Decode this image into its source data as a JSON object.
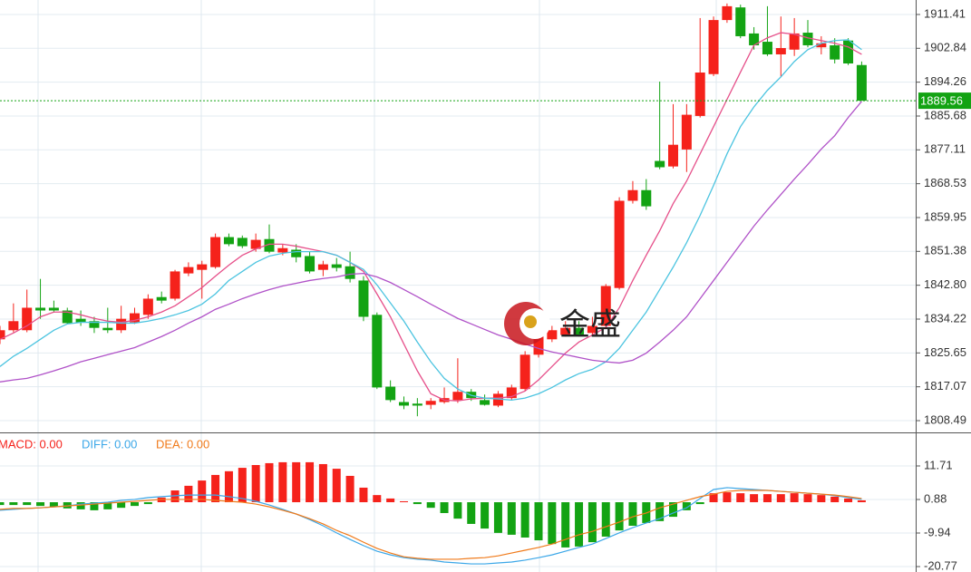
{
  "chart_data": [
    {
      "type": "candlestick",
      "open": [
        1829.1,
        1831.4,
        1831.4,
        1837.1,
        1837.1,
        1836.4,
        1834.3,
        1833.7,
        1832.0,
        1831.4,
        1833.4,
        1835.3,
        1839.8,
        1839.4,
        1845.8,
        1846.7,
        1847.4,
        1855.0,
        1854.8,
        1852.0,
        1854.5,
        1851.1,
        1851.8,
        1850.2,
        1846.7,
        1848.1,
        1847.6,
        1844.0,
        1835.3,
        1817.1,
        1813.2,
        1812.8,
        1812.5,
        1813.2,
        1813.7,
        1815.8,
        1813.7,
        1812.3,
        1814.2,
        1816.5,
        1825.2,
        1829.1,
        1830.2,
        1832.0,
        1830.7,
        1832.5,
        1842.1,
        1864.2,
        1866.9,
        1874.3,
        1872.9,
        1877.2,
        1885.7,
        1896.3,
        1910.0,
        1913.2,
        1906.6,
        1904.5,
        1901.3,
        1902.5,
        1906.8,
        1903.1,
        1903.6,
        1904.8,
        1898.6
      ],
      "high": [
        1832.5,
        1838.2,
        1841.7,
        1844.4,
        1838.9,
        1837.1,
        1836.4,
        1834.8,
        1837.1,
        1837.6,
        1837.1,
        1840.5,
        1841.2,
        1846.7,
        1848.6,
        1849.0,
        1855.9,
        1855.9,
        1855.4,
        1855.9,
        1858.2,
        1853.2,
        1853.2,
        1851.3,
        1849.0,
        1849.7,
        1851.3,
        1845.1,
        1835.9,
        1818.7,
        1814.6,
        1814.2,
        1814.2,
        1816.9,
        1824.3,
        1816.5,
        1815.1,
        1816.0,
        1817.6,
        1826.1,
        1830.7,
        1832.5,
        1833.7,
        1833.7,
        1834.8,
        1843.1,
        1865.1,
        1869.2,
        1869.7,
        1894.4,
        1888.7,
        1888.7,
        1910.5,
        1910.9,
        1914.2,
        1913.9,
        1908.2,
        1913.5,
        1910.9,
        1910.5,
        1910.0,
        1905.9,
        1905.4,
        1905.4,
        1899.5
      ],
      "low": [
        1827.9,
        1830.9,
        1830.9,
        1834.3,
        1835.9,
        1833.0,
        1832.5,
        1830.7,
        1830.7,
        1830.7,
        1833.0,
        1834.3,
        1838.2,
        1838.9,
        1845.1,
        1839.4,
        1847.0,
        1852.7,
        1852.2,
        1851.3,
        1850.9,
        1850.4,
        1848.6,
        1845.8,
        1845.1,
        1846.3,
        1843.5,
        1833.7,
        1816.5,
        1813.2,
        1811.4,
        1809.6,
        1811.4,
        1812.8,
        1813.0,
        1813.5,
        1812.3,
        1811.9,
        1813.7,
        1816.0,
        1824.5,
        1828.4,
        1829.8,
        1829.8,
        1830.2,
        1832.0,
        1841.7,
        1863.5,
        1861.9,
        1872.2,
        1872.4,
        1871.5,
        1885.3,
        1895.8,
        1909.3,
        1905.4,
        1902.5,
        1900.9,
        1895.6,
        1900.9,
        1903.1,
        1901.3,
        1899.0,
        1898.6,
        1889.56
      ],
      "close": [
        1831.4,
        1833.7,
        1837.1,
        1836.4,
        1836.4,
        1833.2,
        1833.4,
        1832.0,
        1831.4,
        1834.3,
        1835.7,
        1839.4,
        1838.9,
        1846.3,
        1847.4,
        1848.1,
        1855.0,
        1853.2,
        1852.7,
        1854.3,
        1851.3,
        1852.2,
        1849.9,
        1846.3,
        1848.1,
        1847.2,
        1844.4,
        1834.8,
        1816.9,
        1813.7,
        1812.3,
        1812.3,
        1813.5,
        1814.2,
        1815.8,
        1814.2,
        1812.5,
        1815.3,
        1816.9,
        1825.2,
        1829.8,
        1831.4,
        1832.0,
        1830.2,
        1832.5,
        1842.6,
        1864.2,
        1866.9,
        1862.8,
        1872.7,
        1878.4,
        1886.0,
        1896.7,
        1910.0,
        1913.5,
        1905.9,
        1903.6,
        1901.3,
        1902.9,
        1906.6,
        1903.6,
        1904.1,
        1900.0,
        1899.0,
        1889.56
      ],
      "up_color": "#f5221b",
      "down_color": "#13a313",
      "series": [
        {
          "color": "#e6508a",
          "values": [
            1829.1,
            1830.7,
            1832.5,
            1834.8,
            1836.0,
            1836.0,
            1835.3,
            1834.4,
            1833.7,
            1833.4,
            1833.9,
            1834.8,
            1836.0,
            1837.6,
            1839.9,
            1842.2,
            1845.1,
            1847.9,
            1850.4,
            1852.0,
            1853.2,
            1853.2,
            1852.7,
            1852.0,
            1851.3,
            1850.4,
            1848.6,
            1846.3,
            1840.6,
            1834.8,
            1827.9,
            1821.1,
            1815.3,
            1813.7,
            1813.5,
            1814.0,
            1814.2,
            1814.2,
            1814.6,
            1816.0,
            1818.8,
            1822.2,
            1825.6,
            1828.4,
            1830.2,
            1832.1,
            1837.1,
            1844.0,
            1850.4,
            1856.6,
            1863.5,
            1869.2,
            1876.1,
            1883.0,
            1889.9,
            1896.8,
            1903.6,
            1905.5,
            1906.8,
            1906.4,
            1905.5,
            1904.8,
            1904.1,
            1903.2,
            1901.3
          ]
        },
        {
          "color": "#4cc4e0",
          "values": [
            1822.2,
            1824.8,
            1826.8,
            1829.1,
            1831.4,
            1833.0,
            1833.4,
            1833.4,
            1833.4,
            1833.2,
            1833.2,
            1833.7,
            1834.4,
            1835.3,
            1836.4,
            1838.0,
            1840.6,
            1844.0,
            1846.3,
            1848.6,
            1850.2,
            1850.9,
            1851.3,
            1851.3,
            1851.3,
            1850.4,
            1848.6,
            1846.8,
            1842.9,
            1838.3,
            1833.7,
            1828.4,
            1823.4,
            1819.2,
            1816.5,
            1814.9,
            1814.2,
            1814.0,
            1813.7,
            1814.2,
            1815.3,
            1816.9,
            1818.8,
            1820.4,
            1821.5,
            1823.4,
            1826.8,
            1831.4,
            1836.0,
            1841.7,
            1847.4,
            1853.6,
            1860.5,
            1868.1,
            1876.1,
            1883.0,
            1888.0,
            1892.2,
            1895.6,
            1899.5,
            1902.5,
            1904.1,
            1904.8,
            1905.0,
            1902.5
          ]
        },
        {
          "color": "#b052c8",
          "values": [
            1818.3,
            1818.8,
            1819.2,
            1820.1,
            1821.1,
            1822.2,
            1823.4,
            1824.3,
            1825.2,
            1826.1,
            1827.0,
            1828.4,
            1829.8,
            1831.4,
            1833.2,
            1834.8,
            1836.7,
            1838.0,
            1839.4,
            1840.6,
            1841.7,
            1842.6,
            1843.3,
            1844.0,
            1844.5,
            1844.9,
            1845.6,
            1845.8,
            1844.9,
            1843.5,
            1841.7,
            1839.9,
            1838.0,
            1836.2,
            1834.4,
            1833.0,
            1831.6,
            1830.2,
            1829.1,
            1827.9,
            1826.8,
            1825.9,
            1825.2,
            1824.5,
            1823.8,
            1823.4,
            1823.1,
            1823.8,
            1825.6,
            1828.4,
            1831.4,
            1834.8,
            1839.4,
            1844.0,
            1848.6,
            1853.2,
            1857.8,
            1861.9,
            1865.8,
            1869.7,
            1873.4,
            1877.3,
            1880.7,
            1885.3,
            1889.4
          ]
        }
      ],
      "ylim": [
        1805.51,
        1915.08
      ],
      "yticks": [
        1911.41,
        1902.84,
        1894.26,
        1885.68,
        1877.11,
        1868.53,
        1859.95,
        1851.38,
        {
          "value": 1842.8,
          "label": "1842.80"
        },
        1834.22,
        1825.65,
        1817.07,
        1808.49
      ],
      "grid": true,
      "last_price": 1889.56,
      "last_price_color": "#13a313",
      "watermark": "金盛"
    },
    {
      "type": "macd",
      "legend_labels": [
        "MACD: 0.00",
        "DIFF: 0.00",
        "DEA: 0.00"
      ],
      "legend_colors": [
        "#f5221b",
        "#3ba7e8",
        "#f07a1a"
      ],
      "histogram": {
        "up_color": "#f5221b",
        "down_color": "#13a313",
        "values": [
          -0.9,
          -0.9,
          -0.9,
          -1.2,
          -1.5,
          -2.0,
          -2.3,
          -2.6,
          -2.3,
          -1.8,
          -1.2,
          -0.6,
          1.5,
          3.8,
          5.3,
          7.0,
          8.8,
          10.0,
          11.1,
          12.0,
          12.6,
          12.9,
          12.9,
          12.9,
          12.3,
          10.8,
          8.5,
          4.7,
          2.3,
          1.2,
          0.3,
          -0.6,
          -1.8,
          -3.5,
          -5.3,
          -7.0,
          -8.5,
          -9.9,
          -10.5,
          -11.4,
          -12.3,
          -13.5,
          -14.6,
          -14.3,
          -12.9,
          -11.1,
          -9.1,
          -7.6,
          -6.7,
          -6.1,
          -4.7,
          -2.6,
          -0.6,
          2.9,
          3.2,
          2.9,
          2.6,
          2.6,
          2.6,
          2.9,
          2.6,
          2.3,
          1.8,
          1.2,
          0.6
        ]
      },
      "series": [
        {
          "color": "#3ba7e8",
          "values": [
            -2.6,
            -2.3,
            -2.0,
            -1.8,
            -1.5,
            -1.2,
            -0.6,
            -0.3,
            0.0,
            0.6,
            0.9,
            1.5,
            1.8,
            2.1,
            2.3,
            2.3,
            2.3,
            1.8,
            1.2,
            0.3,
            -0.9,
            -2.3,
            -3.8,
            -5.6,
            -7.6,
            -9.9,
            -12.0,
            -14.0,
            -15.8,
            -17.0,
            -17.9,
            -18.4,
            -18.7,
            -19.3,
            -19.6,
            -19.9,
            -19.9,
            -19.6,
            -19.3,
            -18.7,
            -17.9,
            -17.0,
            -15.8,
            -14.6,
            -13.5,
            -11.7,
            -9.9,
            -8.2,
            -6.7,
            -5.3,
            -3.5,
            -1.8,
            1.2,
            4.1,
            4.7,
            4.4,
            4.1,
            3.8,
            3.5,
            3.2,
            2.9,
            2.6,
            2.1,
            1.5,
            0.9
          ]
        },
        {
          "color": "#f07a1a",
          "values": [
            -2.3,
            -2.0,
            -2.0,
            -1.8,
            -1.5,
            -1.2,
            -0.9,
            -0.6,
            -0.3,
            0.0,
            0.3,
            0.6,
            0.9,
            0.9,
            0.9,
            0.9,
            0.6,
            0.3,
            0.0,
            -0.6,
            -1.5,
            -2.6,
            -3.8,
            -5.3,
            -7.0,
            -9.1,
            -10.8,
            -12.9,
            -14.9,
            -16.4,
            -17.6,
            -18.1,
            -18.4,
            -18.4,
            -18.4,
            -18.1,
            -17.9,
            -17.3,
            -16.4,
            -15.5,
            -14.6,
            -13.5,
            -12.0,
            -10.5,
            -9.4,
            -7.9,
            -6.4,
            -4.7,
            -3.5,
            -1.8,
            -0.6,
            0.6,
            1.8,
            2.6,
            3.5,
            3.8,
            3.8,
            3.8,
            3.5,
            3.2,
            2.9,
            2.6,
            2.3,
            1.8,
            1.2
          ]
        }
      ],
      "ylim": [
        -22.52,
        22.53
      ],
      "yticks": [
        11.71,
        0.88,
        -9.94,
        -20.77
      ],
      "grid": true
    }
  ]
}
